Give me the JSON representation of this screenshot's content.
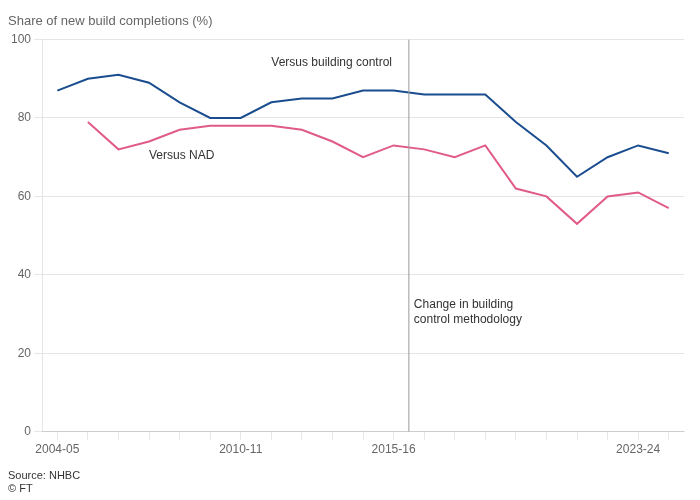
{
  "chart_data": {
    "type": "line",
    "title": "Share of new build completions (%)",
    "source": "Source: NHBC\n© FT",
    "categories": [
      "2004-05",
      null,
      null,
      null,
      null,
      null,
      "2010-11",
      null,
      null,
      null,
      null,
      "2015-16",
      null,
      null,
      null,
      null,
      null,
      null,
      null,
      "2023-24",
      null
    ],
    "series": [
      {
        "name": "Versus building control",
        "color": "#1a4d8f",
        "values": [
          87,
          90,
          91,
          89,
          84,
          80,
          80,
          84,
          85,
          85,
          87,
          87,
          86,
          86,
          86,
          79,
          73,
          65,
          70,
          73,
          71
        ]
      },
      {
        "name": "Versus NAD",
        "color": "#e05a8a",
        "values": [
          null,
          79,
          72,
          74,
          77,
          78,
          78,
          78,
          77,
          74,
          70,
          73,
          72,
          70,
          73,
          62,
          60,
          53,
          60,
          61,
          57
        ]
      }
    ],
    "annotations": [
      {
        "text": "Change in building\ncontrol methodology",
        "x": 11.5,
        "y": 34
      }
    ],
    "ylim": [
      0,
      100
    ],
    "yticks": [
      0,
      20,
      40,
      60,
      80,
      100
    ],
    "grid": "y"
  }
}
